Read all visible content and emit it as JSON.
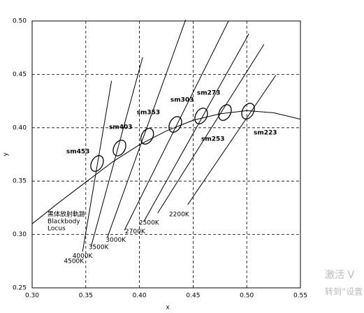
{
  "chart_data": {
    "type": "chromaticity",
    "x_label": "x",
    "y_label": "y",
    "xlim": [
      0.3,
      0.55
    ],
    "ylim": [
      0.25,
      0.5
    ],
    "xticks": [
      {
        "value": 0.3,
        "label": "0.30"
      },
      {
        "value": 0.35,
        "label": "0.35"
      },
      {
        "value": 0.4,
        "label": "0.40"
      },
      {
        "value": 0.45,
        "label": "0.45"
      },
      {
        "value": 0.5,
        "label": "0.50"
      },
      {
        "value": 0.55,
        "label": "0.55"
      }
    ],
    "yticks": [
      {
        "value": 0.25,
        "label": "0.25"
      },
      {
        "value": 0.3,
        "label": "0.30"
      },
      {
        "value": 0.35,
        "label": "0.35"
      },
      {
        "value": 0.4,
        "label": "0.40"
      },
      {
        "value": 0.45,
        "label": "0.45"
      },
      {
        "value": 0.5,
        "label": "0.50"
      }
    ],
    "grid": true,
    "locus": {
      "label": [
        "黑体放射軌跡",
        "Blackbody",
        "Locus"
      ],
      "x": [
        0.3,
        0.325,
        0.35,
        0.375,
        0.4,
        0.425,
        0.45,
        0.475,
        0.5,
        0.525,
        0.55
      ],
      "y": [
        0.31,
        0.33,
        0.349,
        0.368,
        0.384,
        0.397,
        0.407,
        0.413,
        0.416,
        0.414,
        0.408
      ]
    },
    "isotherms": [
      {
        "label": "4500K",
        "x": [
          0.347,
          0.374
        ],
        "y": [
          0.284,
          0.444
        ]
      },
      {
        "label": "4000K",
        "x": [
          0.355,
          0.403
        ],
        "y": [
          0.289,
          0.466
        ]
      },
      {
        "label": "3500K",
        "x": [
          0.37,
          0.443
        ],
        "y": [
          0.297,
          0.501
        ]
      },
      {
        "label": "3000K",
        "x": [
          0.386,
          0.483
        ],
        "y": [
          0.304,
          0.5
        ]
      },
      {
        "label": "2700K",
        "x": [
          0.404,
          0.502
        ],
        "y": [
          0.312,
          0.488
        ]
      },
      {
        "label": "2500K",
        "x": [
          0.417,
          0.516
        ],
        "y": [
          0.32,
          0.478
        ]
      },
      {
        "label": "2200K",
        "x": [
          0.445,
          0.527
        ],
        "y": [
          0.328,
          0.449
        ]
      }
    ],
    "ellipses": [
      {
        "name": "sm453",
        "x": 0.3605,
        "y": 0.3665
      },
      {
        "name": "sm403",
        "x": 0.3814,
        "y": 0.381
      },
      {
        "name": "sm353",
        "x": 0.4072,
        "y": 0.392
      },
      {
        "name": "sm303",
        "x": 0.4334,
        "y": 0.4031
      },
      {
        "name": "sm273",
        "x": 0.4575,
        "y": 0.411
      },
      {
        "name": "sm253",
        "x": 0.4797,
        "y": 0.4142
      },
      {
        "name": "sm223",
        "x": 0.5012,
        "y": 0.4155
      }
    ]
  },
  "watermark": [
    "激活 V",
    "转到“设置"
  ]
}
